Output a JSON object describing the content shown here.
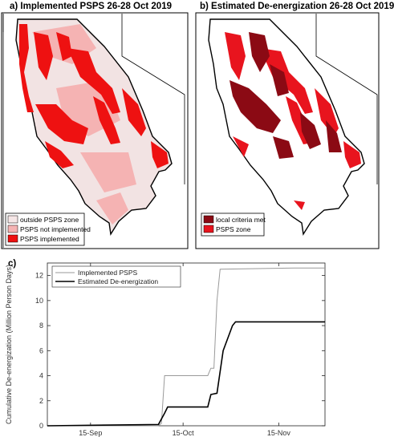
{
  "panel_a": {
    "title": "a) Implemented PSPS 26-28 Oct 2019",
    "legend": [
      {
        "label": "outside PSPS zone",
        "color": "#f5e6e6"
      },
      {
        "label": "PSPS not implemented",
        "color": "#f5b3b3"
      },
      {
        "label": "PSPS implemented",
        "color": "#ee1111"
      }
    ]
  },
  "panel_b": {
    "title": "b) Estimated De-energization 26-28 Oct 2019",
    "legend": [
      {
        "label": "local criteria met",
        "color": "#8b0a14"
      },
      {
        "label": "PSPS zone",
        "color": "#e8141e"
      }
    ]
  },
  "panel_c": {
    "label": "c)"
  },
  "chart_data": {
    "type": "line",
    "title": "",
    "xlabel": "",
    "ylabel": "Cumulative De-energization (Million Person Days)",
    "x_ticks": [
      "15-Sep",
      "15-Oct",
      "15-Nov"
    ],
    "y_ticks": [
      0,
      2,
      4,
      6,
      8,
      10,
      12
    ],
    "ylim": [
      0,
      13
    ],
    "xlim": [
      "2019-09-01",
      "2019-11-30"
    ],
    "legend_position": "top-left",
    "grid": false,
    "series": [
      {
        "name": "Implemented PSPS",
        "color": "#9a9a9a",
        "points": [
          [
            "2019-09-01",
            0
          ],
          [
            "2019-10-07",
            0
          ],
          [
            "2019-10-08",
            0.2
          ],
          [
            "2019-10-09",
            4.0
          ],
          [
            "2019-10-23",
            4.0
          ],
          [
            "2019-10-24",
            4.6
          ],
          [
            "2019-10-25",
            4.6
          ],
          [
            "2019-10-26",
            10.0
          ],
          [
            "2019-10-27",
            12.5
          ],
          [
            "2019-11-20",
            12.6
          ],
          [
            "2019-11-30",
            12.6
          ]
        ]
      },
      {
        "name": "Estimated De-energization",
        "color": "#000000",
        "points": [
          [
            "2019-09-01",
            0
          ],
          [
            "2019-10-07",
            0.1
          ],
          [
            "2019-10-09",
            1.0
          ],
          [
            "2019-10-10",
            1.5
          ],
          [
            "2019-10-23",
            1.5
          ],
          [
            "2019-10-24",
            2.5
          ],
          [
            "2019-10-26",
            2.6
          ],
          [
            "2019-10-28",
            6.0
          ],
          [
            "2019-10-31",
            8.0
          ],
          [
            "2019-11-01",
            8.3
          ],
          [
            "2019-11-30",
            8.3
          ]
        ]
      }
    ]
  }
}
